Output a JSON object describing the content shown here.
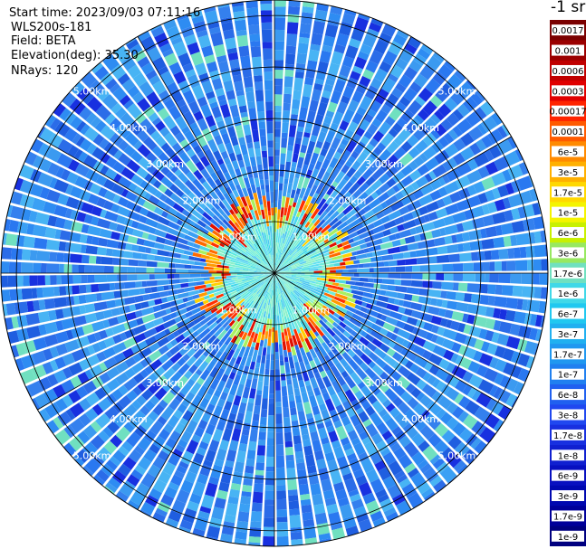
{
  "header": {
    "start_time": "Start time: 2023/09/03 07:11:16",
    "instrument": "WLS200s-181",
    "field": "Field: BETA",
    "elevation": "Elevation(deg): 35.30",
    "nrays": "NRays: 120"
  },
  "colorbar": {
    "unit_label": "-1 sr",
    "ticks": [
      "0.0017",
      "0.001",
      "0.0006",
      "0.0003",
      "0.00017",
      "0.0001",
      "6e-5",
      "3e-5",
      "1.7e-5",
      "1e-5",
      "6e-6",
      "3e-6",
      "1.7e-6",
      "1e-6",
      "6e-7",
      "3e-7",
      "1.7e-7",
      "1e-7",
      "6e-8",
      "3e-8",
      "1.7e-8",
      "1e-8",
      "6e-9",
      "3e-9",
      "1.7e-9",
      "1e-9"
    ],
    "colors": [
      "#7a0000",
      "#9b0000",
      "#c00000",
      "#e00000",
      "#ff2400",
      "#ff5a00",
      "#ff8a00",
      "#ffb000",
      "#ffd800",
      "#f4f400",
      "#c8f000",
      "#98e860",
      "#70e0c0",
      "#40d8e8",
      "#20c8f0",
      "#20b0f0",
      "#2098f0",
      "#2080f0",
      "#2060f0",
      "#2048f0",
      "#1830e0",
      "#1020d0",
      "#0810c0",
      "#0008b0",
      "#00009a",
      "#000080"
    ]
  },
  "chart_data": {
    "type": "heatmap",
    "projection": "polar-ppi",
    "n_rays": 120,
    "range_rings_km": [
      1,
      2,
      3,
      4,
      5
    ],
    "range_ring_labels": [
      "1.00km",
      "2.00km",
      "3.00km",
      "4.00km",
      "5.00km"
    ],
    "azimuth_spokes_deg": [
      0,
      30,
      60,
      90,
      120,
      150,
      180,
      210,
      240,
      270,
      300,
      330
    ],
    "max_range_km": 5.3,
    "scale": "log",
    "value_range": [
      1e-09,
      0.0017
    ],
    "description_bands": [
      {
        "range_km": [
          0,
          1.0
        ],
        "level": "3e-7"
      },
      {
        "range_km": [
          1.0,
          1.5
        ],
        "level": "1e-4"
      },
      {
        "range_km": [
          1.5,
          5.3
        ],
        "level": "3e-8"
      }
    ]
  }
}
